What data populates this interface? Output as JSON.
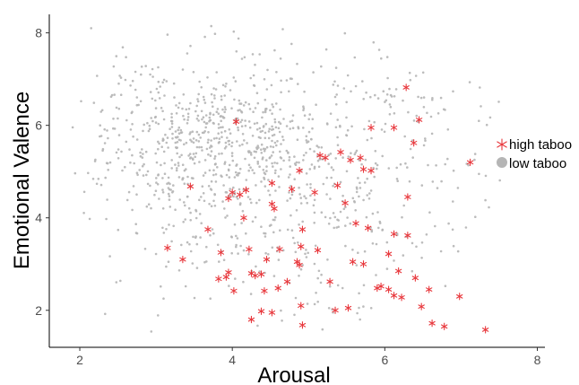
{
  "chart_data": {
    "type": "scatter",
    "title": "",
    "xlabel": "Arousal",
    "ylabel": "Emotional Valence",
    "xlim": [
      1.6,
      8.1
    ],
    "ylim": [
      1.2,
      8.4
    ],
    "xticks": [
      2,
      4,
      6,
      8
    ],
    "yticks": [
      2,
      4,
      6,
      8
    ],
    "grid": false,
    "legend_position": "right",
    "series": [
      {
        "name": "high taboo",
        "color": "#e8383d",
        "marker": "asterisk",
        "points": [
          [
            6.28,
            6.82
          ],
          [
            6.45,
            6.12
          ],
          [
            4.05,
            6.08
          ],
          [
            6.12,
            5.95
          ],
          [
            5.82,
            5.95
          ],
          [
            6.38,
            5.62
          ],
          [
            7.12,
            5.2
          ],
          [
            5.15,
            5.35
          ],
          [
            5.42,
            5.42
          ],
          [
            5.22,
            5.3
          ],
          [
            5.55,
            5.25
          ],
          [
            5.68,
            5.3
          ],
          [
            5.82,
            5.02
          ],
          [
            5.72,
            5.05
          ],
          [
            4.88,
            5.02
          ],
          [
            3.45,
            4.68
          ],
          [
            4.0,
            4.55
          ],
          [
            4.1,
            4.5
          ],
          [
            4.18,
            4.6
          ],
          [
            4.52,
            4.75
          ],
          [
            4.78,
            4.62
          ],
          [
            5.08,
            4.55
          ],
          [
            5.38,
            4.7
          ],
          [
            5.48,
            4.32
          ],
          [
            6.3,
            4.45
          ],
          [
            3.95,
            4.42
          ],
          [
            4.52,
            4.3
          ],
          [
            4.55,
            4.2
          ],
          [
            4.15,
            4.0
          ],
          [
            5.62,
            3.88
          ],
          [
            5.78,
            3.78
          ],
          [
            6.12,
            3.65
          ],
          [
            6.3,
            3.62
          ],
          [
            3.68,
            3.75
          ],
          [
            4.92,
            3.75
          ],
          [
            4.62,
            3.32
          ],
          [
            4.9,
            3.38
          ],
          [
            5.12,
            3.3
          ],
          [
            4.22,
            3.32
          ],
          [
            3.85,
            3.25
          ],
          [
            3.15,
            3.35
          ],
          [
            3.35,
            3.1
          ],
          [
            5.58,
            3.05
          ],
          [
            5.72,
            3.0
          ],
          [
            6.05,
            3.22
          ],
          [
            4.45,
            3.1
          ],
          [
            4.85,
            3.05
          ],
          [
            4.88,
            2.98
          ],
          [
            4.25,
            2.8
          ],
          [
            4.3,
            2.75
          ],
          [
            4.38,
            2.78
          ],
          [
            3.95,
            2.82
          ],
          [
            3.92,
            2.72
          ],
          [
            3.82,
            2.68
          ],
          [
            4.6,
            2.48
          ],
          [
            4.72,
            2.62
          ],
          [
            5.28,
            2.62
          ],
          [
            6.18,
            2.85
          ],
          [
            6.4,
            2.7
          ],
          [
            6.05,
            2.45
          ],
          [
            5.95,
            2.52
          ],
          [
            5.9,
            2.48
          ],
          [
            6.12,
            2.32
          ],
          [
            6.22,
            2.28
          ],
          [
            4.02,
            2.42
          ],
          [
            4.42,
            2.42
          ],
          [
            4.9,
            2.1
          ],
          [
            6.48,
            2.08
          ],
          [
            6.58,
            2.45
          ],
          [
            6.98,
            2.3
          ],
          [
            4.38,
            1.98
          ],
          [
            4.52,
            1.95
          ],
          [
            5.35,
            2.0
          ],
          [
            5.52,
            2.05
          ],
          [
            4.25,
            1.8
          ],
          [
            4.92,
            1.68
          ],
          [
            6.62,
            1.72
          ],
          [
            6.78,
            1.65
          ],
          [
            7.32,
            1.58
          ]
        ]
      },
      {
        "name": "low taboo",
        "color": "#b5b5b5",
        "marker": "dot",
        "generated": {
          "seed": 20240611,
          "clusters": [
            {
              "n": 620,
              "cx": 3.7,
              "cy": 5.5,
              "sx": 0.75,
              "sy": 0.85
            },
            {
              "n": 250,
              "cx": 5.2,
              "cy": 4.9,
              "sx": 1.1,
              "sy": 1.35
            },
            {
              "n": 130,
              "cx": 4.6,
              "cy": 3.2,
              "sx": 0.95,
              "sy": 0.9
            },
            {
              "n": 90,
              "cx": 5.9,
              "cy": 6.2,
              "sx": 1.0,
              "sy": 0.9
            },
            {
              "n": 60,
              "cx": 2.8,
              "cy": 6.4,
              "sx": 0.55,
              "sy": 0.8
            }
          ],
          "xlim": [
            1.9,
            7.8
          ],
          "ylim": [
            1.5,
            8.2
          ]
        }
      }
    ]
  }
}
